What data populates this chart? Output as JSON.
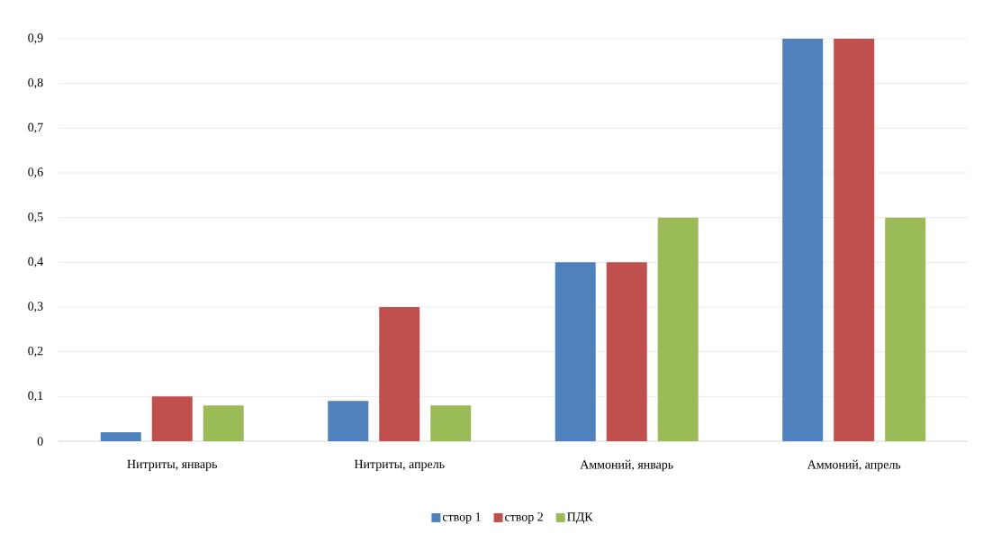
{
  "chart_data": {
    "type": "bar",
    "categories": [
      "Нитриты, январь",
      "Нитриты, апрель",
      "Аммоний, январь",
      "Аммоний, апрель"
    ],
    "series": [
      {
        "name": "створ 1",
        "color": "#4f81bd",
        "values": [
          0.02,
          0.09,
          0.4,
          0.9
        ]
      },
      {
        "name": "створ 2",
        "color": "#c0504d",
        "values": [
          0.1,
          0.3,
          0.4,
          0.9
        ]
      },
      {
        "name": "ПДК",
        "color": "#9bbb59",
        "values": [
          0.08,
          0.08,
          0.5,
          0.5
        ]
      }
    ],
    "ylim": [
      0,
      0.9
    ],
    "yticks": [
      0,
      {
        "value": 0.1,
        "label": "0,1"
      },
      {
        "value": 0.2,
        "label": "0,2"
      },
      {
        "value": 0.3,
        "label": "0,3"
      },
      {
        "value": 0.4,
        "label": "0,4"
      },
      {
        "value": 0.5,
        "label": "0,5"
      },
      {
        "value": 0.6,
        "label": "0,6"
      },
      {
        "value": 0.7,
        "label": "0,7"
      },
      {
        "value": 0.8,
        "label": "0,8"
      },
      {
        "value": 0.9,
        "label": "0,9"
      }
    ],
    "grid": "y",
    "legend": "bottom"
  }
}
